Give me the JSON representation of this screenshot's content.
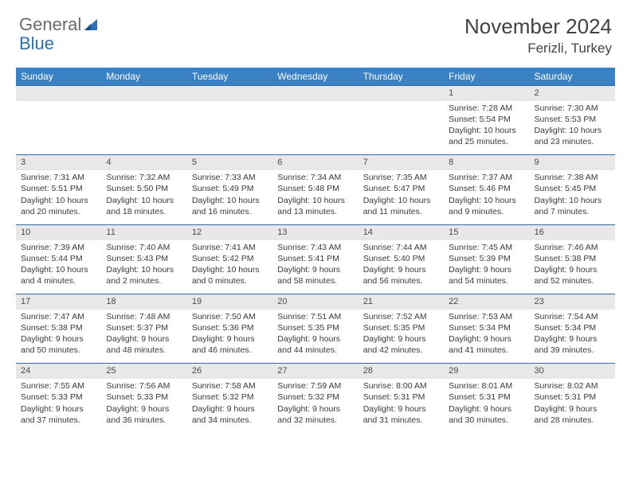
{
  "logo": {
    "text1": "General",
    "text2": "Blue"
  },
  "title": "November 2024",
  "location": "Ferizli, Turkey",
  "colors": {
    "header_bg": "#3a82c4",
    "header_text": "#ffffff",
    "rule": "#2f6da8",
    "daynum_bg": "#e8e8e8",
    "body_text": "#3a3a3a",
    "title_text": "#424242",
    "logo_gray": "#6a6a6a",
    "logo_blue": "#2d6fb5",
    "page_bg": "#ffffff"
  },
  "day_headers": [
    "Sunday",
    "Monday",
    "Tuesday",
    "Wednesday",
    "Thursday",
    "Friday",
    "Saturday"
  ],
  "weeks": [
    [
      null,
      null,
      null,
      null,
      null,
      {
        "n": "1",
        "sr": "7:28 AM",
        "ss": "5:54 PM",
        "dl": "10 hours and 25 minutes."
      },
      {
        "n": "2",
        "sr": "7:30 AM",
        "ss": "5:53 PM",
        "dl": "10 hours and 23 minutes."
      }
    ],
    [
      {
        "n": "3",
        "sr": "7:31 AM",
        "ss": "5:51 PM",
        "dl": "10 hours and 20 minutes."
      },
      {
        "n": "4",
        "sr": "7:32 AM",
        "ss": "5:50 PM",
        "dl": "10 hours and 18 minutes."
      },
      {
        "n": "5",
        "sr": "7:33 AM",
        "ss": "5:49 PM",
        "dl": "10 hours and 16 minutes."
      },
      {
        "n": "6",
        "sr": "7:34 AM",
        "ss": "5:48 PM",
        "dl": "10 hours and 13 minutes."
      },
      {
        "n": "7",
        "sr": "7:35 AM",
        "ss": "5:47 PM",
        "dl": "10 hours and 11 minutes."
      },
      {
        "n": "8",
        "sr": "7:37 AM",
        "ss": "5:46 PM",
        "dl": "10 hours and 9 minutes."
      },
      {
        "n": "9",
        "sr": "7:38 AM",
        "ss": "5:45 PM",
        "dl": "10 hours and 7 minutes."
      }
    ],
    [
      {
        "n": "10",
        "sr": "7:39 AM",
        "ss": "5:44 PM",
        "dl": "10 hours and 4 minutes."
      },
      {
        "n": "11",
        "sr": "7:40 AM",
        "ss": "5:43 PM",
        "dl": "10 hours and 2 minutes."
      },
      {
        "n": "12",
        "sr": "7:41 AM",
        "ss": "5:42 PM",
        "dl": "10 hours and 0 minutes."
      },
      {
        "n": "13",
        "sr": "7:43 AM",
        "ss": "5:41 PM",
        "dl": "9 hours and 58 minutes."
      },
      {
        "n": "14",
        "sr": "7:44 AM",
        "ss": "5:40 PM",
        "dl": "9 hours and 56 minutes."
      },
      {
        "n": "15",
        "sr": "7:45 AM",
        "ss": "5:39 PM",
        "dl": "9 hours and 54 minutes."
      },
      {
        "n": "16",
        "sr": "7:46 AM",
        "ss": "5:38 PM",
        "dl": "9 hours and 52 minutes."
      }
    ],
    [
      {
        "n": "17",
        "sr": "7:47 AM",
        "ss": "5:38 PM",
        "dl": "9 hours and 50 minutes."
      },
      {
        "n": "18",
        "sr": "7:48 AM",
        "ss": "5:37 PM",
        "dl": "9 hours and 48 minutes."
      },
      {
        "n": "19",
        "sr": "7:50 AM",
        "ss": "5:36 PM",
        "dl": "9 hours and 46 minutes."
      },
      {
        "n": "20",
        "sr": "7:51 AM",
        "ss": "5:35 PM",
        "dl": "9 hours and 44 minutes."
      },
      {
        "n": "21",
        "sr": "7:52 AM",
        "ss": "5:35 PM",
        "dl": "9 hours and 42 minutes."
      },
      {
        "n": "22",
        "sr": "7:53 AM",
        "ss": "5:34 PM",
        "dl": "9 hours and 41 minutes."
      },
      {
        "n": "23",
        "sr": "7:54 AM",
        "ss": "5:34 PM",
        "dl": "9 hours and 39 minutes."
      }
    ],
    [
      {
        "n": "24",
        "sr": "7:55 AM",
        "ss": "5:33 PM",
        "dl": "9 hours and 37 minutes."
      },
      {
        "n": "25",
        "sr": "7:56 AM",
        "ss": "5:33 PM",
        "dl": "9 hours and 36 minutes."
      },
      {
        "n": "26",
        "sr": "7:58 AM",
        "ss": "5:32 PM",
        "dl": "9 hours and 34 minutes."
      },
      {
        "n": "27",
        "sr": "7:59 AM",
        "ss": "5:32 PM",
        "dl": "9 hours and 32 minutes."
      },
      {
        "n": "28",
        "sr": "8:00 AM",
        "ss": "5:31 PM",
        "dl": "9 hours and 31 minutes."
      },
      {
        "n": "29",
        "sr": "8:01 AM",
        "ss": "5:31 PM",
        "dl": "9 hours and 30 minutes."
      },
      {
        "n": "30",
        "sr": "8:02 AM",
        "ss": "5:31 PM",
        "dl": "9 hours and 28 minutes."
      }
    ]
  ],
  "labels": {
    "sunrise": "Sunrise: ",
    "sunset": "Sunset: ",
    "daylight": "Daylight: "
  }
}
